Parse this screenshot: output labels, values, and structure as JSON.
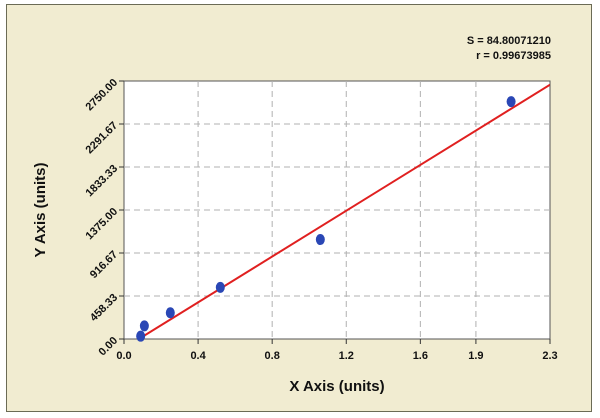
{
  "chart_data": {
    "type": "scatter",
    "title": "",
    "xlabel": "X Axis (units)",
    "ylabel": "Y Axis (units)",
    "xlim": [
      0.0,
      2.3
    ],
    "ylim": [
      0.0,
      2750.0
    ],
    "x_ticks": [
      "0.0",
      "0.4",
      "0.8",
      "1.2",
      "1.6",
      "1.9",
      "2.3"
    ],
    "y_ticks": [
      "0.00",
      "458.33",
      "916.67",
      "1375.00",
      "1833.33",
      "2291.67",
      "2750.00"
    ],
    "grid": true,
    "series": [
      {
        "type": "scatter",
        "color": "#2a47b5",
        "points": [
          {
            "x": 0.09,
            "y": 30
          },
          {
            "x": 0.11,
            "y": 140
          },
          {
            "x": 0.25,
            "y": 280
          },
          {
            "x": 0.52,
            "y": 550
          },
          {
            "x": 1.06,
            "y": 1060
          },
          {
            "x": 2.09,
            "y": 2530
          }
        ]
      },
      {
        "type": "line",
        "color": "#e02020",
        "points": [
          {
            "x": 0.08,
            "y": 0
          },
          {
            "x": 2.3,
            "y": 2710
          }
        ]
      }
    ],
    "annotations": [
      "S = 84.80071210",
      "r = 0.99673985"
    ]
  },
  "colors": {
    "background": "#f1ecd1",
    "plot_area": "#ffffff",
    "grid": "#b0b0b0",
    "point": "#2a47b5",
    "fit_line": "#e02020"
  }
}
